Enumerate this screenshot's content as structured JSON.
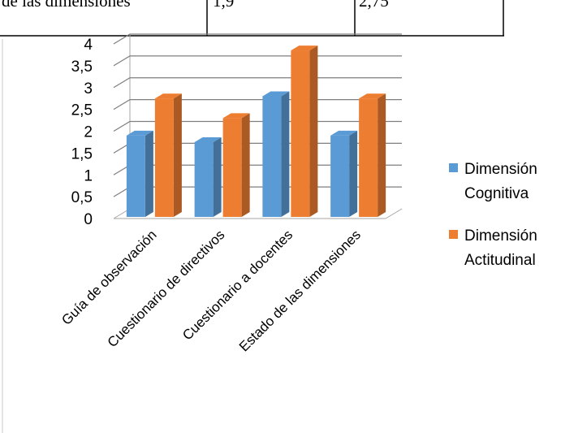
{
  "table_fragment": {
    "rows": [
      [
        "de las dimensiones",
        "1,9",
        "2,75"
      ],
      [
        "",
        "",
        ""
      ]
    ]
  },
  "chart_data": {
    "type": "bar",
    "categories": [
      "Guía de observación",
      "Cuestionario de directivos",
      "Cuestionario a docentes",
      "Estado de las dimensiones"
    ],
    "series": [
      {
        "name": "Dimensión Cognitiva",
        "name_lines": [
          "Dimensión",
          "Cognitiva"
        ],
        "values": [
          1.9,
          1.75,
          2.8,
          1.9
        ],
        "color": "#5B9BD5"
      },
      {
        "name": "Dimensión Actitudinal",
        "name_lines": [
          "Dimensión",
          "Actitudinal"
        ],
        "values": [
          2.75,
          2.3,
          3.85,
          2.75
        ],
        "color": "#ED7D31"
      }
    ],
    "y_ticks": [
      "0",
      "0,5",
      "1",
      "1,5",
      "2",
      "2,5",
      "3",
      "3,5",
      "4"
    ],
    "ylim": [
      0,
      4
    ],
    "grid": true,
    "legend_position": "right",
    "three_d": true
  }
}
